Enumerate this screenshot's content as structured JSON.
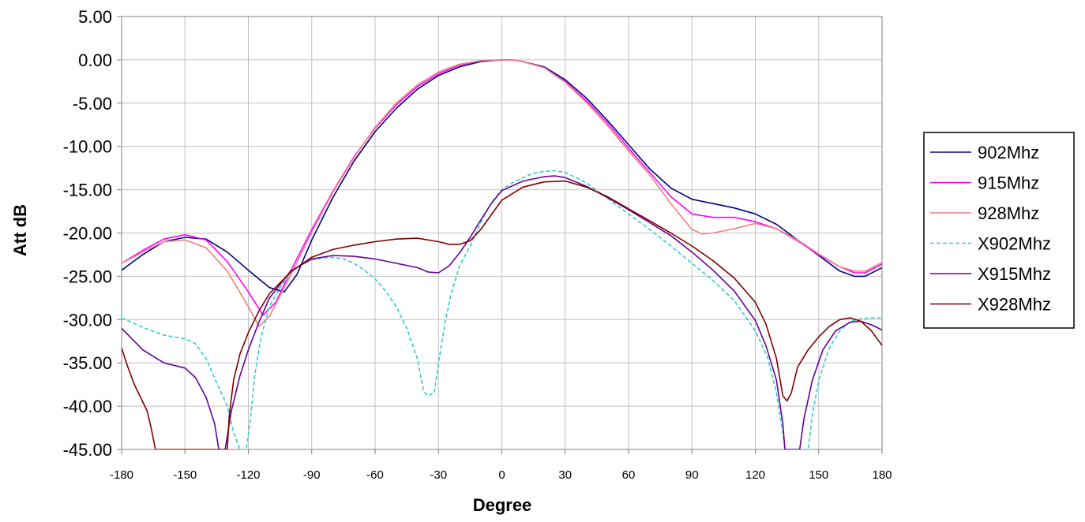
{
  "chart_data": {
    "type": "line",
    "title": "",
    "xlabel": "Degree",
    "ylabel": "Att dB",
    "xlim": [
      -180,
      180
    ],
    "ylim": [
      -45,
      5
    ],
    "x_ticks": [
      -180,
      -150,
      -120,
      -90,
      -60,
      -30,
      0,
      30,
      60,
      90,
      120,
      150,
      180
    ],
    "x_tick_labels": [
      "-180",
      "-150",
      "-120",
      "-90",
      "-60",
      "-30",
      "0",
      "30",
      "60",
      "90",
      "120",
      "150",
      "180"
    ],
    "y_ticks": [
      5,
      0,
      -5,
      -10,
      -15,
      -20,
      -25,
      -30,
      -35,
      -40,
      -45
    ],
    "y_tick_labels": [
      "5.00",
      "0.00",
      "-5.00",
      "-10.00",
      "-15.00",
      "-20.00",
      "-25.00",
      "-30.00",
      "-35.00",
      "-40.00",
      "-45.00"
    ],
    "grid": true,
    "legend_position": "right",
    "series": [
      {
        "name": "902Mhz",
        "color": "#000080",
        "dash": "solid",
        "points": [
          [
            -180,
            -24.3
          ],
          [
            -170,
            -22.5
          ],
          [
            -160,
            -21.0
          ],
          [
            -150,
            -20.5
          ],
          [
            -140,
            -20.7
          ],
          [
            -130,
            -22.2
          ],
          [
            -120,
            -24.3
          ],
          [
            -110,
            -26.3
          ],
          [
            -103,
            -26.8
          ],
          [
            -97,
            -24.8
          ],
          [
            -90,
            -20.8
          ],
          [
            -80,
            -15.9
          ],
          [
            -70,
            -11.7
          ],
          [
            -60,
            -8.3
          ],
          [
            -50,
            -5.6
          ],
          [
            -40,
            -3.4
          ],
          [
            -30,
            -1.8
          ],
          [
            -20,
            -0.8
          ],
          [
            -10,
            -0.2
          ],
          [
            0,
            0
          ],
          [
            5,
            0
          ],
          [
            10,
            -0.2
          ],
          [
            20,
            -0.8
          ],
          [
            30,
            -2.3
          ],
          [
            40,
            -4.4
          ],
          [
            50,
            -7.0
          ],
          [
            60,
            -9.8
          ],
          [
            70,
            -12.6
          ],
          [
            80,
            -14.8
          ],
          [
            90,
            -16.1
          ],
          [
            100,
            -16.6
          ],
          [
            110,
            -17.1
          ],
          [
            120,
            -17.8
          ],
          [
            130,
            -19.0
          ],
          [
            140,
            -20.8
          ],
          [
            150,
            -22.6
          ],
          [
            160,
            -24.4
          ],
          [
            167,
            -25.0
          ],
          [
            172,
            -25.0
          ],
          [
            180,
            -24.0
          ]
        ]
      },
      {
        "name": "915Mhz",
        "color": "#ff00ff",
        "dash": "solid",
        "points": [
          [
            -180,
            -23.5
          ],
          [
            -170,
            -22.0
          ],
          [
            -160,
            -20.7
          ],
          [
            -150,
            -20.2
          ],
          [
            -140,
            -20.8
          ],
          [
            -130,
            -23.3
          ],
          [
            -120,
            -26.8
          ],
          [
            -113,
            -29.5
          ],
          [
            -107,
            -28.0
          ],
          [
            -100,
            -24.4
          ],
          [
            -90,
            -19.6
          ],
          [
            -80,
            -15.2
          ],
          [
            -70,
            -11.2
          ],
          [
            -60,
            -7.9
          ],
          [
            -50,
            -5.2
          ],
          [
            -40,
            -3.1
          ],
          [
            -30,
            -1.6
          ],
          [
            -20,
            -0.6
          ],
          [
            -10,
            -0.1
          ],
          [
            0,
            0
          ],
          [
            5,
            0
          ],
          [
            10,
            -0.2
          ],
          [
            20,
            -0.9
          ],
          [
            30,
            -2.5
          ],
          [
            40,
            -4.7
          ],
          [
            50,
            -7.3
          ],
          [
            60,
            -10.2
          ],
          [
            70,
            -13.0
          ],
          [
            80,
            -15.8
          ],
          [
            90,
            -17.8
          ],
          [
            100,
            -18.2
          ],
          [
            110,
            -18.2
          ],
          [
            120,
            -18.7
          ],
          [
            130,
            -19.5
          ],
          [
            140,
            -20.9
          ],
          [
            150,
            -22.5
          ],
          [
            160,
            -23.9
          ],
          [
            167,
            -24.6
          ],
          [
            172,
            -24.6
          ],
          [
            180,
            -23.6
          ]
        ]
      },
      {
        "name": "928Mhz",
        "color": "#f08080",
        "dash": "solid",
        "points": [
          [
            -180,
            -23.5
          ],
          [
            -170,
            -22.2
          ],
          [
            -160,
            -21.0
          ],
          [
            -150,
            -20.8
          ],
          [
            -140,
            -21.7
          ],
          [
            -130,
            -24.4
          ],
          [
            -120,
            -28.5
          ],
          [
            -115,
            -30.8
          ],
          [
            -110,
            -29.6
          ],
          [
            -100,
            -24.9
          ],
          [
            -90,
            -19.9
          ],
          [
            -80,
            -15.3
          ],
          [
            -70,
            -11.3
          ],
          [
            -60,
            -7.8
          ],
          [
            -50,
            -5.0
          ],
          [
            -40,
            -2.9
          ],
          [
            -30,
            -1.4
          ],
          [
            -20,
            -0.5
          ],
          [
            -10,
            -0.1
          ],
          [
            0,
            0
          ],
          [
            5,
            0
          ],
          [
            10,
            -0.2
          ],
          [
            20,
            -0.9
          ],
          [
            30,
            -2.6
          ],
          [
            40,
            -4.9
          ],
          [
            50,
            -7.6
          ],
          [
            60,
            -10.5
          ],
          [
            70,
            -13.3
          ],
          [
            80,
            -16.6
          ],
          [
            90,
            -19.6
          ],
          [
            95,
            -20.1
          ],
          [
            100,
            -20.0
          ],
          [
            110,
            -19.5
          ],
          [
            120,
            -18.9
          ],
          [
            130,
            -19.5
          ],
          [
            140,
            -20.8
          ],
          [
            150,
            -22.4
          ],
          [
            160,
            -23.9
          ],
          [
            167,
            -24.4
          ],
          [
            172,
            -24.4
          ],
          [
            180,
            -23.4
          ]
        ]
      },
      {
        "name": "X902Mhz",
        "color": "#33cccc",
        "dash": "dashed",
        "points": [
          [
            -180,
            -29.8
          ],
          [
            -170,
            -30.9
          ],
          [
            -160,
            -31.8
          ],
          [
            -150,
            -32.2
          ],
          [
            -145,
            -32.8
          ],
          [
            -140,
            -34.5
          ],
          [
            -135,
            -37.3
          ],
          [
            -130,
            -40.0
          ],
          [
            -127,
            -43.0
          ],
          [
            -124,
            -45.0
          ],
          [
            -121,
            -45.0
          ],
          [
            -119,
            -41.5
          ],
          [
            -117,
            -36.5
          ],
          [
            -114,
            -32.0
          ],
          [
            -110,
            -28.5
          ],
          [
            -105,
            -26.3
          ],
          [
            -100,
            -24.6
          ],
          [
            -95,
            -23.6
          ],
          [
            -90,
            -23.1
          ],
          [
            -85,
            -22.9
          ],
          [
            -80,
            -22.8
          ],
          [
            -75,
            -23.0
          ],
          [
            -70,
            -23.5
          ],
          [
            -65,
            -24.3
          ],
          [
            -60,
            -25.3
          ],
          [
            -55,
            -26.7
          ],
          [
            -50,
            -28.5
          ],
          [
            -45,
            -31.0
          ],
          [
            -40,
            -34.5
          ],
          [
            -37,
            -38.3
          ],
          [
            -35,
            -38.8
          ],
          [
            -32,
            -38.5
          ],
          [
            -30,
            -35.0
          ],
          [
            -27,
            -30.5
          ],
          [
            -24,
            -27.0
          ],
          [
            -20,
            -23.8
          ],
          [
            -15,
            -21.5
          ],
          [
            -10,
            -18.8
          ],
          [
            -5,
            -16.5
          ],
          [
            0,
            -15.0
          ],
          [
            5,
            -14.2
          ],
          [
            10,
            -13.6
          ],
          [
            15,
            -13.1
          ],
          [
            20,
            -12.9
          ],
          [
            25,
            -12.8
          ],
          [
            30,
            -13.0
          ],
          [
            40,
            -14.2
          ],
          [
            50,
            -16.0
          ],
          [
            60,
            -17.8
          ],
          [
            70,
            -19.6
          ],
          [
            80,
            -21.5
          ],
          [
            90,
            -23.5
          ],
          [
            100,
            -25.5
          ],
          [
            110,
            -27.8
          ],
          [
            120,
            -31.3
          ],
          [
            126,
            -34.5
          ],
          [
            130,
            -38.5
          ],
          [
            133,
            -43.0
          ],
          [
            134,
            -45.0
          ],
          [
            145,
            -45.0
          ],
          [
            147,
            -41.0
          ],
          [
            150,
            -37.0
          ],
          [
            155,
            -33.3
          ],
          [
            160,
            -31.3
          ],
          [
            165,
            -30.2
          ],
          [
            170,
            -29.9
          ],
          [
            175,
            -29.8
          ],
          [
            180,
            -29.8
          ]
        ]
      },
      {
        "name": "X915Mhz",
        "color": "#660099",
        "dash": "solid",
        "points": [
          [
            -180,
            -31.0
          ],
          [
            -170,
            -33.5
          ],
          [
            -160,
            -35.0
          ],
          [
            -150,
            -35.6
          ],
          [
            -145,
            -36.7
          ],
          [
            -140,
            -39.0
          ],
          [
            -136,
            -42.0
          ],
          [
            -134,
            -45.0
          ],
          [
            -131,
            -45.0
          ],
          [
            -128,
            -40.5
          ],
          [
            -124,
            -36.5
          ],
          [
            -120,
            -33.5
          ],
          [
            -115,
            -30.3
          ],
          [
            -110,
            -27.5
          ],
          [
            -100,
            -24.4
          ],
          [
            -90,
            -23.0
          ],
          [
            -80,
            -22.6
          ],
          [
            -70,
            -22.7
          ],
          [
            -60,
            -23.0
          ],
          [
            -50,
            -23.5
          ],
          [
            -40,
            -24.0
          ],
          [
            -35,
            -24.5
          ],
          [
            -30,
            -24.6
          ],
          [
            -25,
            -23.8
          ],
          [
            -20,
            -22.3
          ],
          [
            -15,
            -20.5
          ],
          [
            -10,
            -18.5
          ],
          [
            -5,
            -16.6
          ],
          [
            0,
            -15.1
          ],
          [
            10,
            -14.0
          ],
          [
            20,
            -13.5
          ],
          [
            25,
            -13.4
          ],
          [
            30,
            -13.6
          ],
          [
            40,
            -14.6
          ],
          [
            50,
            -15.9
          ],
          [
            60,
            -17.3
          ],
          [
            70,
            -18.8
          ],
          [
            80,
            -20.3
          ],
          [
            90,
            -22.2
          ],
          [
            100,
            -24.3
          ],
          [
            110,
            -26.7
          ],
          [
            120,
            -30.1
          ],
          [
            125,
            -33.0
          ],
          [
            130,
            -37.0
          ],
          [
            133,
            -42.0
          ],
          [
            134,
            -45.0
          ],
          [
            141,
            -45.0
          ],
          [
            143,
            -41.5
          ],
          [
            147,
            -37.0
          ],
          [
            152,
            -33.5
          ],
          [
            158,
            -31.3
          ],
          [
            165,
            -30.3
          ],
          [
            170,
            -30.2
          ],
          [
            175,
            -30.6
          ],
          [
            180,
            -31.2
          ]
        ]
      },
      {
        "name": "X928Mhz",
        "color": "#800000",
        "dash": "solid",
        "points": [
          [
            -180,
            -33.3
          ],
          [
            -177,
            -35.5
          ],
          [
            -174,
            -37.5
          ],
          [
            -171,
            -39.0
          ],
          [
            -168,
            -40.5
          ],
          [
            -166,
            -42.5
          ],
          [
            -164,
            -45.0
          ],
          [
            -130,
            -45.0
          ],
          [
            -129,
            -41.0
          ],
          [
            -127,
            -37.0
          ],
          [
            -124,
            -34.0
          ],
          [
            -120,
            -31.5
          ],
          [
            -115,
            -29.0
          ],
          [
            -110,
            -27.0
          ],
          [
            -100,
            -24.5
          ],
          [
            -90,
            -22.8
          ],
          [
            -80,
            -21.9
          ],
          [
            -70,
            -21.4
          ],
          [
            -60,
            -21.0
          ],
          [
            -50,
            -20.7
          ],
          [
            -40,
            -20.6
          ],
          [
            -30,
            -21.0
          ],
          [
            -25,
            -21.3
          ],
          [
            -20,
            -21.3
          ],
          [
            -15,
            -20.9
          ],
          [
            -10,
            -19.6
          ],
          [
            -5,
            -17.9
          ],
          [
            0,
            -16.2
          ],
          [
            10,
            -14.7
          ],
          [
            20,
            -14.1
          ],
          [
            30,
            -14.0
          ],
          [
            40,
            -14.7
          ],
          [
            50,
            -15.8
          ],
          [
            60,
            -17.2
          ],
          [
            70,
            -18.6
          ],
          [
            80,
            -20.0
          ],
          [
            90,
            -21.5
          ],
          [
            100,
            -23.2
          ],
          [
            110,
            -25.2
          ],
          [
            120,
            -28.0
          ],
          [
            125,
            -30.5
          ],
          [
            130,
            -34.5
          ],
          [
            133,
            -38.8
          ],
          [
            135,
            -39.4
          ],
          [
            137,
            -38.5
          ],
          [
            140,
            -35.5
          ],
          [
            145,
            -33.5
          ],
          [
            150,
            -32.0
          ],
          [
            155,
            -30.8
          ],
          [
            160,
            -30.0
          ],
          [
            165,
            -29.8
          ],
          [
            170,
            -30.2
          ],
          [
            175,
            -31.3
          ],
          [
            180,
            -33.0
          ]
        ]
      }
    ]
  }
}
